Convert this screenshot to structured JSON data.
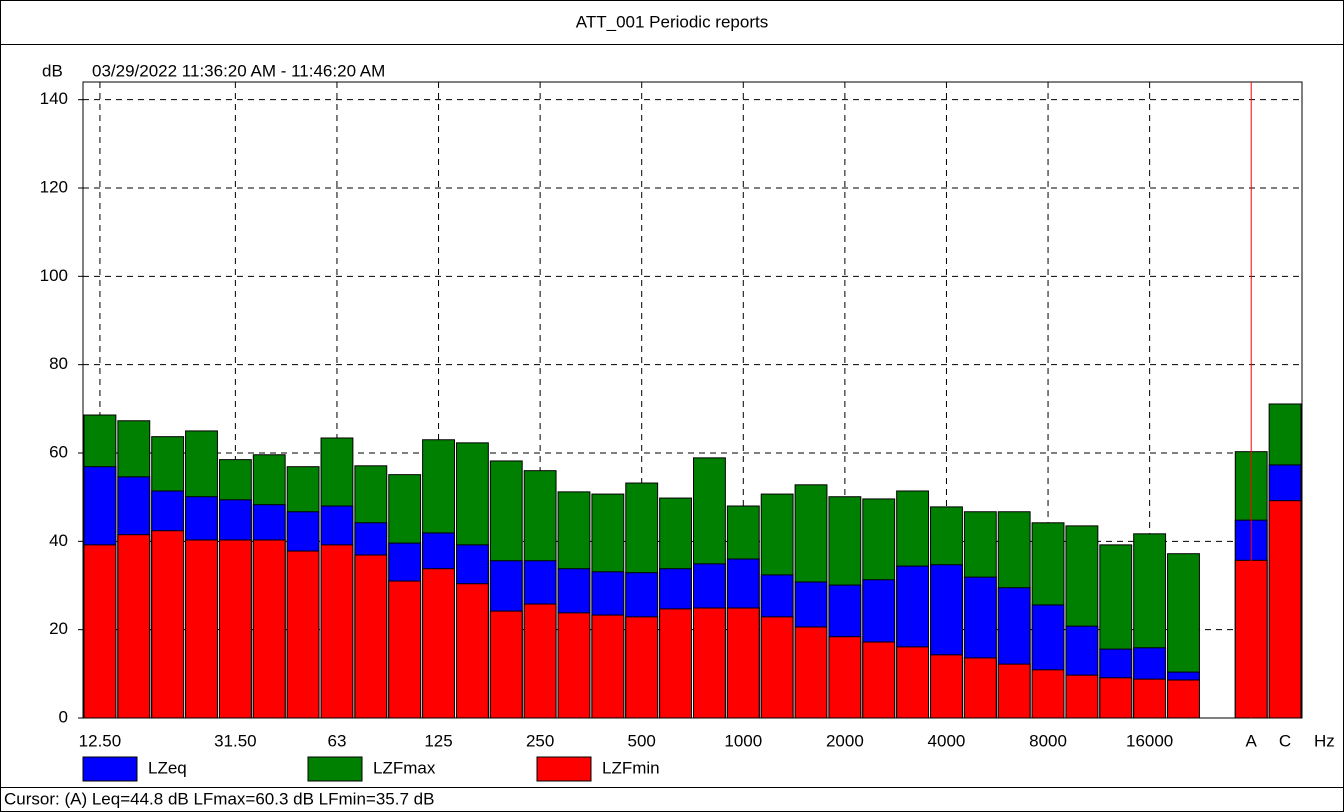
{
  "chart_data": {
    "type": "bar",
    "title": "ATT_001 Periodic reports",
    "subtitle": "03/29/2022 11:36:20 AM - 11:46:20 AM",
    "y_label": "dB",
    "x_label": "Hz",
    "categories": [
      "12.50",
      null,
      null,
      null,
      "31.50",
      null,
      null,
      "63",
      null,
      null,
      "125",
      null,
      null,
      "250",
      null,
      null,
      "500",
      null,
      null,
      "1000",
      null,
      null,
      "2000",
      null,
      null,
      "4000",
      null,
      null,
      "8000",
      null,
      null,
      "16000",
      null,
      null,
      "A",
      "C"
    ],
    "series": [
      {
        "name": "LZeq",
        "color": "#0000ff",
        "values": [
          56.9,
          54.6,
          51.4,
          50.1,
          49.4,
          48.3,
          46.7,
          48.0,
          44.2,
          39.6,
          41.9,
          39.2,
          35.6,
          35.6,
          33.8,
          33.1,
          32.9,
          33.8,
          34.9,
          36.0,
          32.4,
          30.8,
          30.1,
          31.3,
          34.4,
          34.7,
          31.9,
          29.5,
          25.6,
          20.8,
          15.6,
          15.9,
          10.4,
          null,
          44.8,
          57.3
        ]
      },
      {
        "name": "LZFmax",
        "color": "#008000",
        "values": [
          68.6,
          67.3,
          63.7,
          65.0,
          58.5,
          59.6,
          56.9,
          63.4,
          57.1,
          55.1,
          63.0,
          62.3,
          58.2,
          56.0,
          51.2,
          50.7,
          53.2,
          49.8,
          58.9,
          48.0,
          50.7,
          52.8,
          50.1,
          49.6,
          51.4,
          47.8,
          46.7,
          46.7,
          44.2,
          43.5,
          39.2,
          41.7,
          37.2,
          null,
          60.3,
          71.1
        ]
      },
      {
        "name": "LZFmin",
        "color": "#ff0000",
        "values": [
          39.2,
          41.5,
          42.4,
          40.3,
          40.3,
          40.3,
          37.8,
          39.2,
          36.9,
          31.0,
          33.8,
          30.4,
          24.2,
          25.8,
          23.8,
          23.3,
          22.9,
          24.7,
          24.9,
          24.9,
          22.9,
          20.6,
          18.4,
          17.2,
          16.1,
          14.3,
          13.6,
          12.2,
          10.9,
          9.7,
          9.1,
          8.8,
          8.6,
          null,
          35.7,
          49.2
        ]
      }
    ],
    "ylim": [
      0,
      144
    ],
    "yticks": [
      0,
      20,
      40,
      60,
      80,
      100,
      120,
      140
    ],
    "grid": true,
    "cursor_text": "Cursor: (A)  Leq=44.8 dB  LFmax=60.3 dB  LFmin=35.7 dB"
  }
}
